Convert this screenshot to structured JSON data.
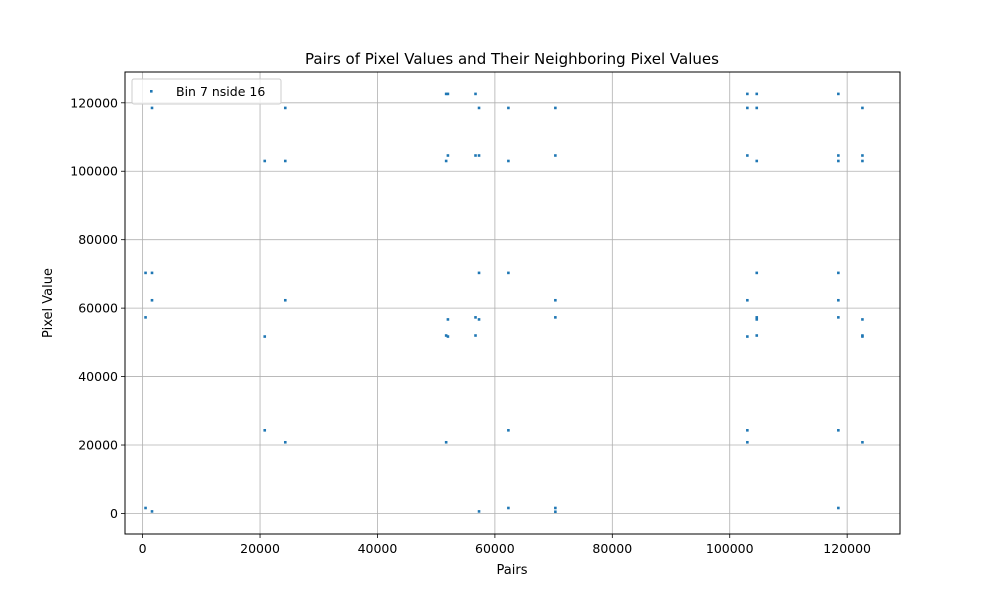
{
  "chart_data": {
    "type": "scatter",
    "title": "Pairs of Pixel Values and Their Neighboring Pixel Values",
    "xlabel": "Pairs",
    "ylabel": "Pixel Value",
    "xlim": [
      -3000,
      129000
    ],
    "ylim": [
      -6000,
      129000
    ],
    "xticks": [
      0,
      20000,
      40000,
      60000,
      80000,
      100000,
      120000
    ],
    "yticks": [
      0,
      20000,
      40000,
      60000,
      80000,
      100000,
      120000
    ],
    "grid": true,
    "legend": {
      "placement": "top-left"
    },
    "colors": {
      "series": "#1f77b4",
      "grid": "#b0b0b0"
    },
    "series": [
      {
        "name": "Bin 7 nside 16",
        "points": [
          [
            500,
            57300
          ],
          [
            500,
            70300
          ],
          [
            500,
            1600
          ],
          [
            1600,
            70300
          ],
          [
            1600,
            62300
          ],
          [
            1600,
            118500
          ],
          [
            1600,
            600
          ],
          [
            20800,
            103000
          ],
          [
            20800,
            51700
          ],
          [
            20800,
            24300
          ],
          [
            24300,
            118500
          ],
          [
            24300,
            103000
          ],
          [
            24300,
            62300
          ],
          [
            24300,
            20800
          ],
          [
            51700,
            103000
          ],
          [
            51700,
            122600
          ],
          [
            51700,
            52000
          ],
          [
            51700,
            20800
          ],
          [
            52000,
            122600
          ],
          [
            52000,
            104600
          ],
          [
            52000,
            56700
          ],
          [
            52000,
            51700
          ],
          [
            56700,
            122600
          ],
          [
            56700,
            104600
          ],
          [
            56700,
            57300
          ],
          [
            56700,
            52000
          ],
          [
            57300,
            118500
          ],
          [
            57300,
            104600
          ],
          [
            57300,
            70300
          ],
          [
            57300,
            56700
          ],
          [
            57300,
            600
          ],
          [
            62300,
            118500
          ],
          [
            62300,
            103000
          ],
          [
            62300,
            70300
          ],
          [
            62300,
            24300
          ],
          [
            62300,
            1600
          ],
          [
            70300,
            118500
          ],
          [
            70300,
            104600
          ],
          [
            70300,
            62300
          ],
          [
            70300,
            57300
          ],
          [
            70300,
            1600
          ],
          [
            70300,
            500
          ],
          [
            103000,
            122600
          ],
          [
            103000,
            118500
          ],
          [
            103000,
            104600
          ],
          [
            103000,
            62300
          ],
          [
            103000,
            51700
          ],
          [
            103000,
            24300
          ],
          [
            103000,
            20800
          ],
          [
            104600,
            122600
          ],
          [
            104600,
            118500
          ],
          [
            104600,
            103000
          ],
          [
            104600,
            70300
          ],
          [
            104600,
            57300
          ],
          [
            104600,
            56700
          ],
          [
            104600,
            52000
          ],
          [
            118500,
            122600
          ],
          [
            118500,
            104600
          ],
          [
            118500,
            103000
          ],
          [
            118500,
            70300
          ],
          [
            118500,
            62300
          ],
          [
            118500,
            57300
          ],
          [
            118500,
            24300
          ],
          [
            118500,
            1600
          ],
          [
            122600,
            118500
          ],
          [
            122600,
            104600
          ],
          [
            122600,
            103000
          ],
          [
            122600,
            56700
          ],
          [
            122600,
            52000
          ],
          [
            122600,
            51700
          ],
          [
            122600,
            20800
          ]
        ]
      }
    ]
  }
}
